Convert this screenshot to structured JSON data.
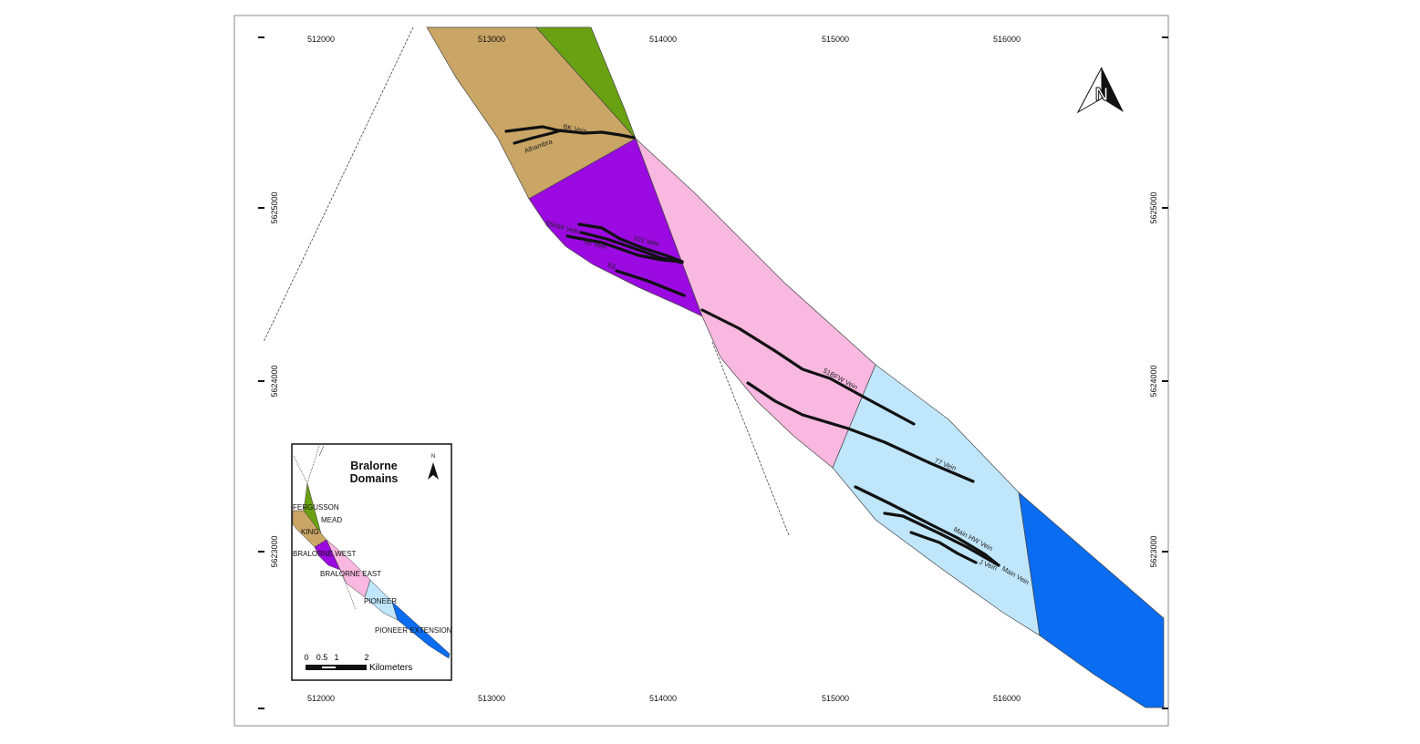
{
  "map": {
    "easting_ticks": [
      "512000",
      "513000",
      "514000",
      "515000",
      "516000"
    ],
    "northing_ticks": [
      "5625000",
      "5624000",
      "5623000"
    ],
    "veins": [
      "BK Vein",
      "Alhambra",
      "55HW Vein",
      "101 Vein",
      "55 Vein",
      "53",
      "51BFW Vein",
      "77 Vein",
      "Main HW Vein",
      "J Vein",
      "Main Vein"
    ],
    "north_arrow_label": "N",
    "domain_colors": {
      "FERGUSSON": "#6aa112",
      "KING": "#c9a665",
      "BRALORNE WEST": "#9b0ae0",
      "BRALORNE EAST": "#f9b8e0",
      "PIONEER": "#bfe6fb",
      "PIONEER EXTENSION": "#0a6cf0"
    }
  },
  "inset": {
    "title_line1": "Bralorne",
    "title_line2": "Domains",
    "north_label": "N",
    "domains": [
      "FERGUSSON",
      "MEAD",
      "KING",
      "BRALORNE WEST",
      "BRALORNE EAST",
      "PIONEER",
      "PIONEER EXTENSION"
    ],
    "scale_labels": [
      "0",
      "0.5",
      "1",
      "2"
    ],
    "scale_unit": "Kilometers"
  }
}
